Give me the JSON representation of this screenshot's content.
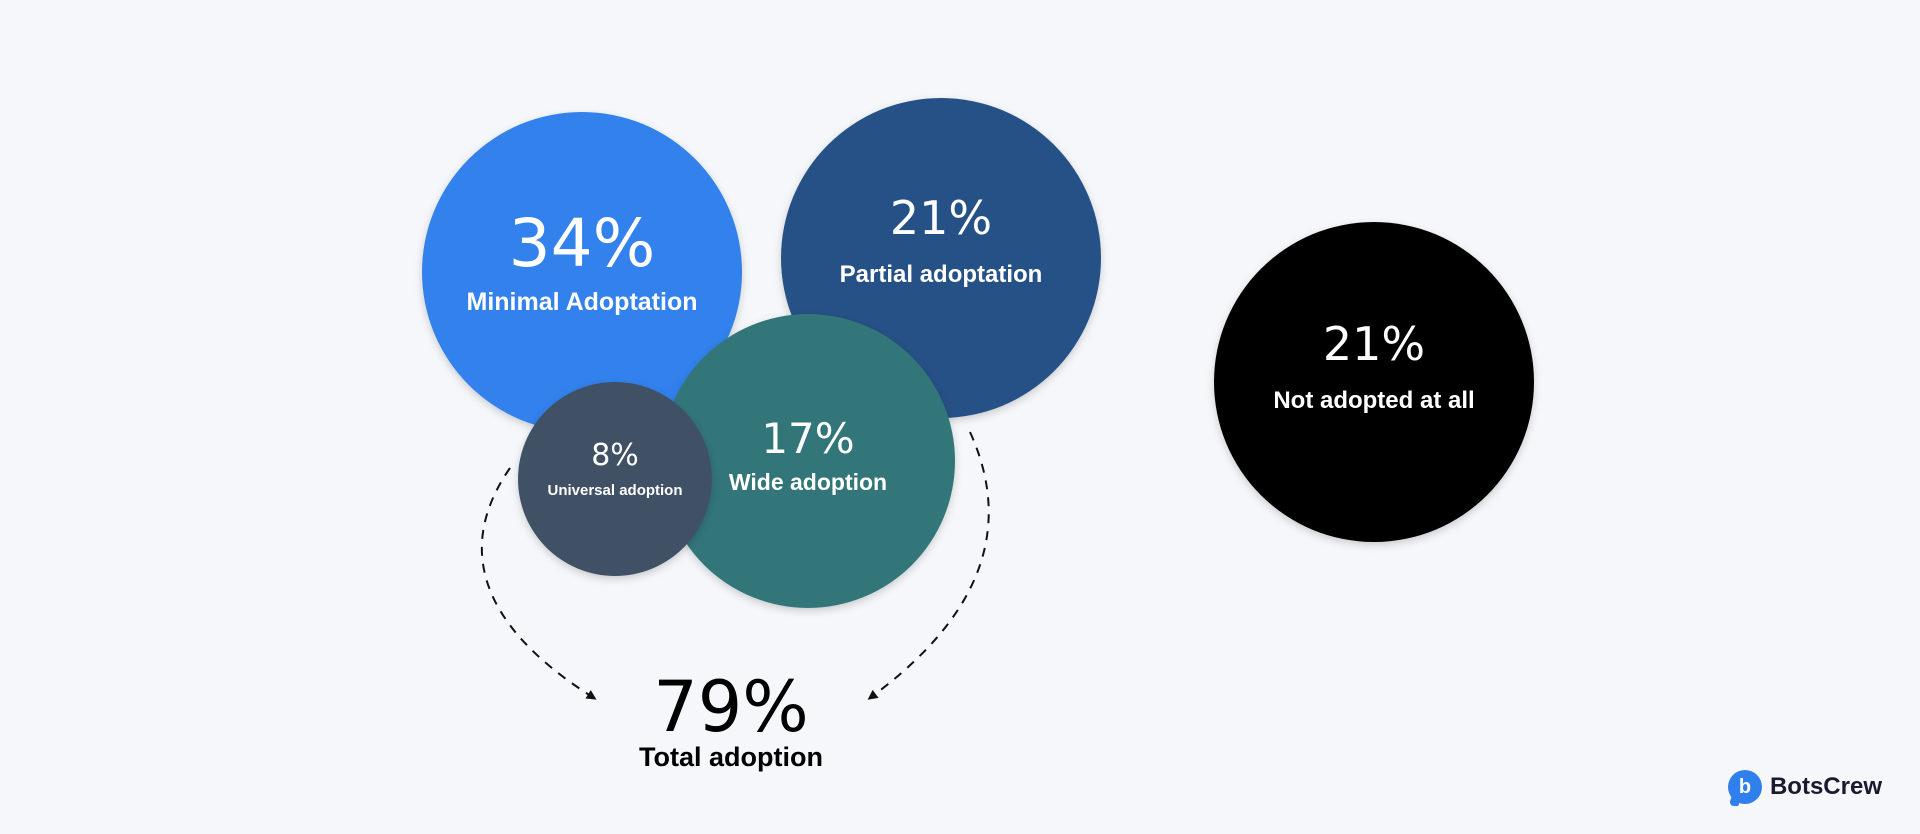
{
  "chart_data": {
    "type": "bubble",
    "title": "",
    "series": [
      {
        "value": "34%",
        "label": "Minimal Adoptation",
        "color": "#3181ec"
      },
      {
        "value": "21%",
        "label": "Partial adoptation",
        "color": "#285186"
      },
      {
        "value": "17%",
        "label": "Wide adoption",
        "color": "#30767a"
      },
      {
        "value": "8%",
        "label": "Universal adoption",
        "color": "#415166"
      },
      {
        "value": "21%",
        "label": "Not adopted at all",
        "color": "#000000"
      }
    ],
    "total": {
      "value": "79%",
      "label": "Total adoption"
    }
  },
  "brand": {
    "name": "BotsCrew",
    "icon": "b",
    "icon_name": "botscrew-logo-icon",
    "color": "#2f80ed"
  }
}
